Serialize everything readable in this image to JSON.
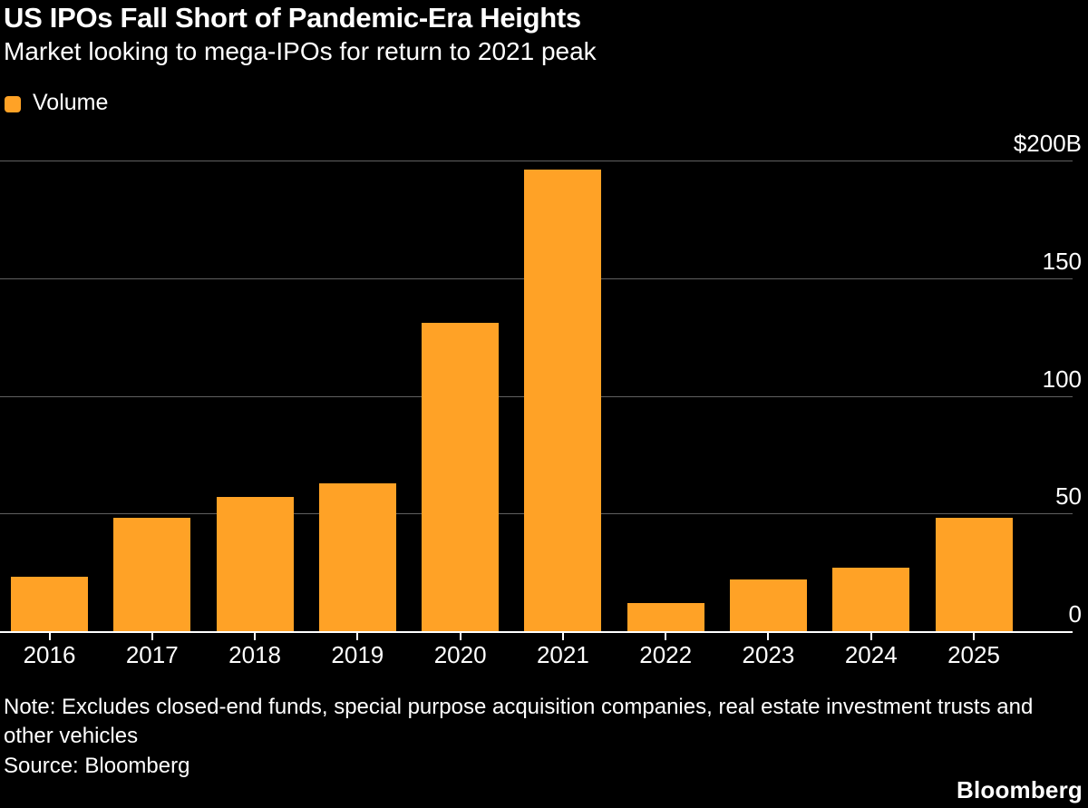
{
  "header": {
    "title": "US IPOs Fall Short of Pandemic-Era Heights",
    "subtitle": "Market looking to mega-IPOs for return to 2021 peak"
  },
  "legend": {
    "label": "Volume",
    "color": "#FFA226"
  },
  "footer": {
    "note": "Note: Excludes closed-end funds, special purpose acquisition companies, real estate investment trusts and other vehicles",
    "source": "Source: Bloomberg",
    "brand": "Bloomberg"
  },
  "chart_data": {
    "type": "bar",
    "title": "US IPOs Fall Short of Pandemic-Era Heights",
    "subtitle": "Market looking to mega-IPOs for return to 2021 peak",
    "series_name": "Volume",
    "categories": [
      "2016",
      "2017",
      "2018",
      "2019",
      "2020",
      "2021",
      "2022",
      "2023",
      "2024",
      "2025"
    ],
    "values": [
      23,
      48,
      57,
      63,
      131,
      196,
      12,
      22,
      27,
      48
    ],
    "unit": "billions of US dollars",
    "xlabel": "",
    "ylabel": "",
    "ylim": [
      0,
      200
    ],
    "yticks": [
      {
        "value": 0,
        "label": "0"
      },
      {
        "value": 50,
        "label": "50"
      },
      {
        "value": 100,
        "label": "100"
      },
      {
        "value": 150,
        "label": "150"
      },
      {
        "value": 200,
        "label": "$200B"
      }
    ],
    "grid": true,
    "legend_position": "top-left",
    "bar_color": "#FFA226",
    "background_color": "#000000",
    "gridline_color": "#606060",
    "axis_color": "#ffffff",
    "text_color": "#ffffff"
  }
}
